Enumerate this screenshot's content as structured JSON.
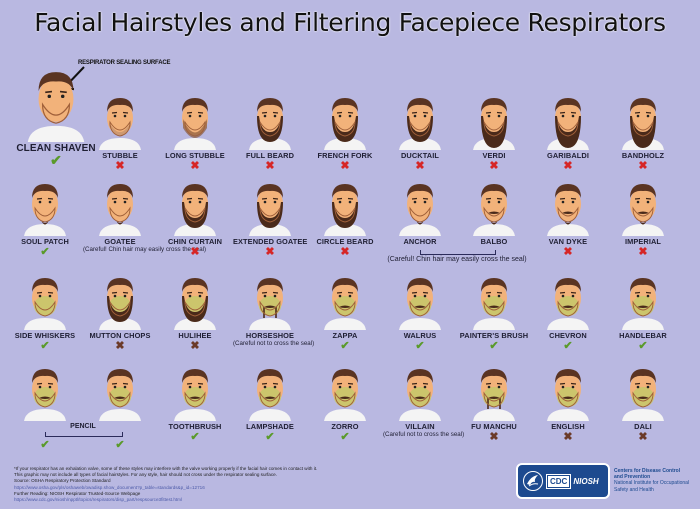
{
  "title": "Facial Hairstyles and Filtering Facepiece Respirators",
  "annotation": "RESPIRATOR SEALING SURFACE",
  "colors": {
    "background": "#b9b8e1",
    "ok": "#5a9a2a",
    "not_ok": "#d62626",
    "seal_area_highlight": "#c9c96a",
    "cdc_blue": "#1d4a8f"
  },
  "legend": {
    "ok_icon": "check-mark",
    "not_ok_icon": "x-mark"
  },
  "rows": [
    {
      "items": [
        {
          "name": "CLEAN SHAVEN",
          "ok": true
        },
        {
          "name": "STUBBLE",
          "ok": false
        },
        {
          "name": "LONG STUBBLE",
          "ok": false
        },
        {
          "name": "FULL BEARD",
          "ok": false
        },
        {
          "name": "FRENCH FORK",
          "ok": false
        },
        {
          "name": "DUCKTAIL",
          "ok": false
        },
        {
          "name": "VERDI",
          "ok": false
        },
        {
          "name": "GARIBALDI",
          "ok": false
        },
        {
          "name": "BANDHOLZ",
          "ok": false
        }
      ]
    },
    {
      "items": [
        {
          "name": "SOUL PATCH",
          "ok": true
        },
        {
          "name": "GOATEE",
          "ok": null,
          "note": "(Careful! Chin hair may easily cross the seal)"
        },
        {
          "name": "CHIN CURTAIN",
          "ok": false
        },
        {
          "name": "EXTENDED GOATEE",
          "ok": false
        },
        {
          "name": "CIRCLE BEARD",
          "ok": false
        },
        {
          "name": "ANCHOR",
          "ok": null
        },
        {
          "name": "BALBO",
          "ok": null
        },
        {
          "name": "VAN DYKE",
          "ok": false
        },
        {
          "name": "IMPERIAL",
          "ok": false
        }
      ],
      "group_note": "(Careful! Chin hair may easily cross the seal)"
    },
    {
      "items": [
        {
          "name": "SIDE WHISKERS",
          "ok": true
        },
        {
          "name": "MUTTON CHOPS",
          "ok": false
        },
        {
          "name": "HULIHEE",
          "ok": false
        },
        {
          "name": "HORSESHOE",
          "ok": null,
          "note": "(Careful not to cross the seal)"
        },
        {
          "name": "ZAPPA",
          "ok": true
        },
        {
          "name": "WALRUS",
          "ok": true
        },
        {
          "name": "PAINTER'S BRUSH",
          "ok": true
        },
        {
          "name": "CHEVRON",
          "ok": true
        },
        {
          "name": "HANDLEBAR",
          "ok": true
        }
      ]
    },
    {
      "items": [
        {
          "name": "",
          "ok": true
        },
        {
          "name": "",
          "ok": true
        },
        {
          "name": "TOOTHBRUSH",
          "ok": true
        },
        {
          "name": "LAMPSHADE",
          "ok": true
        },
        {
          "name": "ZORRO",
          "ok": true
        },
        {
          "name": "VILLAIN",
          "ok": null,
          "note": "(Careful not to cross the seal)"
        },
        {
          "name": "FU MANCHU",
          "ok": false
        },
        {
          "name": "ENGLISH",
          "ok": false
        },
        {
          "name": "DALI",
          "ok": false
        }
      ],
      "group_label": "PENCIL"
    }
  ],
  "marks": {
    "ok": "✔",
    "no": "✖"
  },
  "footer": {
    "line1": "*If your respirator has an exhalation valve, some of these styles may interfere with the valve working properly if the facial hair comes in contact with it.",
    "line2": "This graphic may not include all types of facial hairstyles. For any style, hair should not cross under the respirator sealing surface.",
    "source_label": "Source: OSHA Respiratory Protection Standard",
    "source_link": "https://www.osha.gov/pls/oshaweb/owadisp.show_document?p_table=standards&p_id=12716",
    "further_label": "Further Reading: NIOSH Respirator Trusted-Source Webpage",
    "further_link": "https://www.cdc.gov/niosh/npptl/topics/respirators/disp_part/respsource3fittest.html"
  },
  "logo": {
    "cdc": "CDC",
    "niosh": "NIOSH",
    "agency_line1": "Centers for Disease Control",
    "agency_line2": "and Prevention",
    "agency_line3": "National Institute for Occupational",
    "agency_line4": "Safety and Health"
  }
}
